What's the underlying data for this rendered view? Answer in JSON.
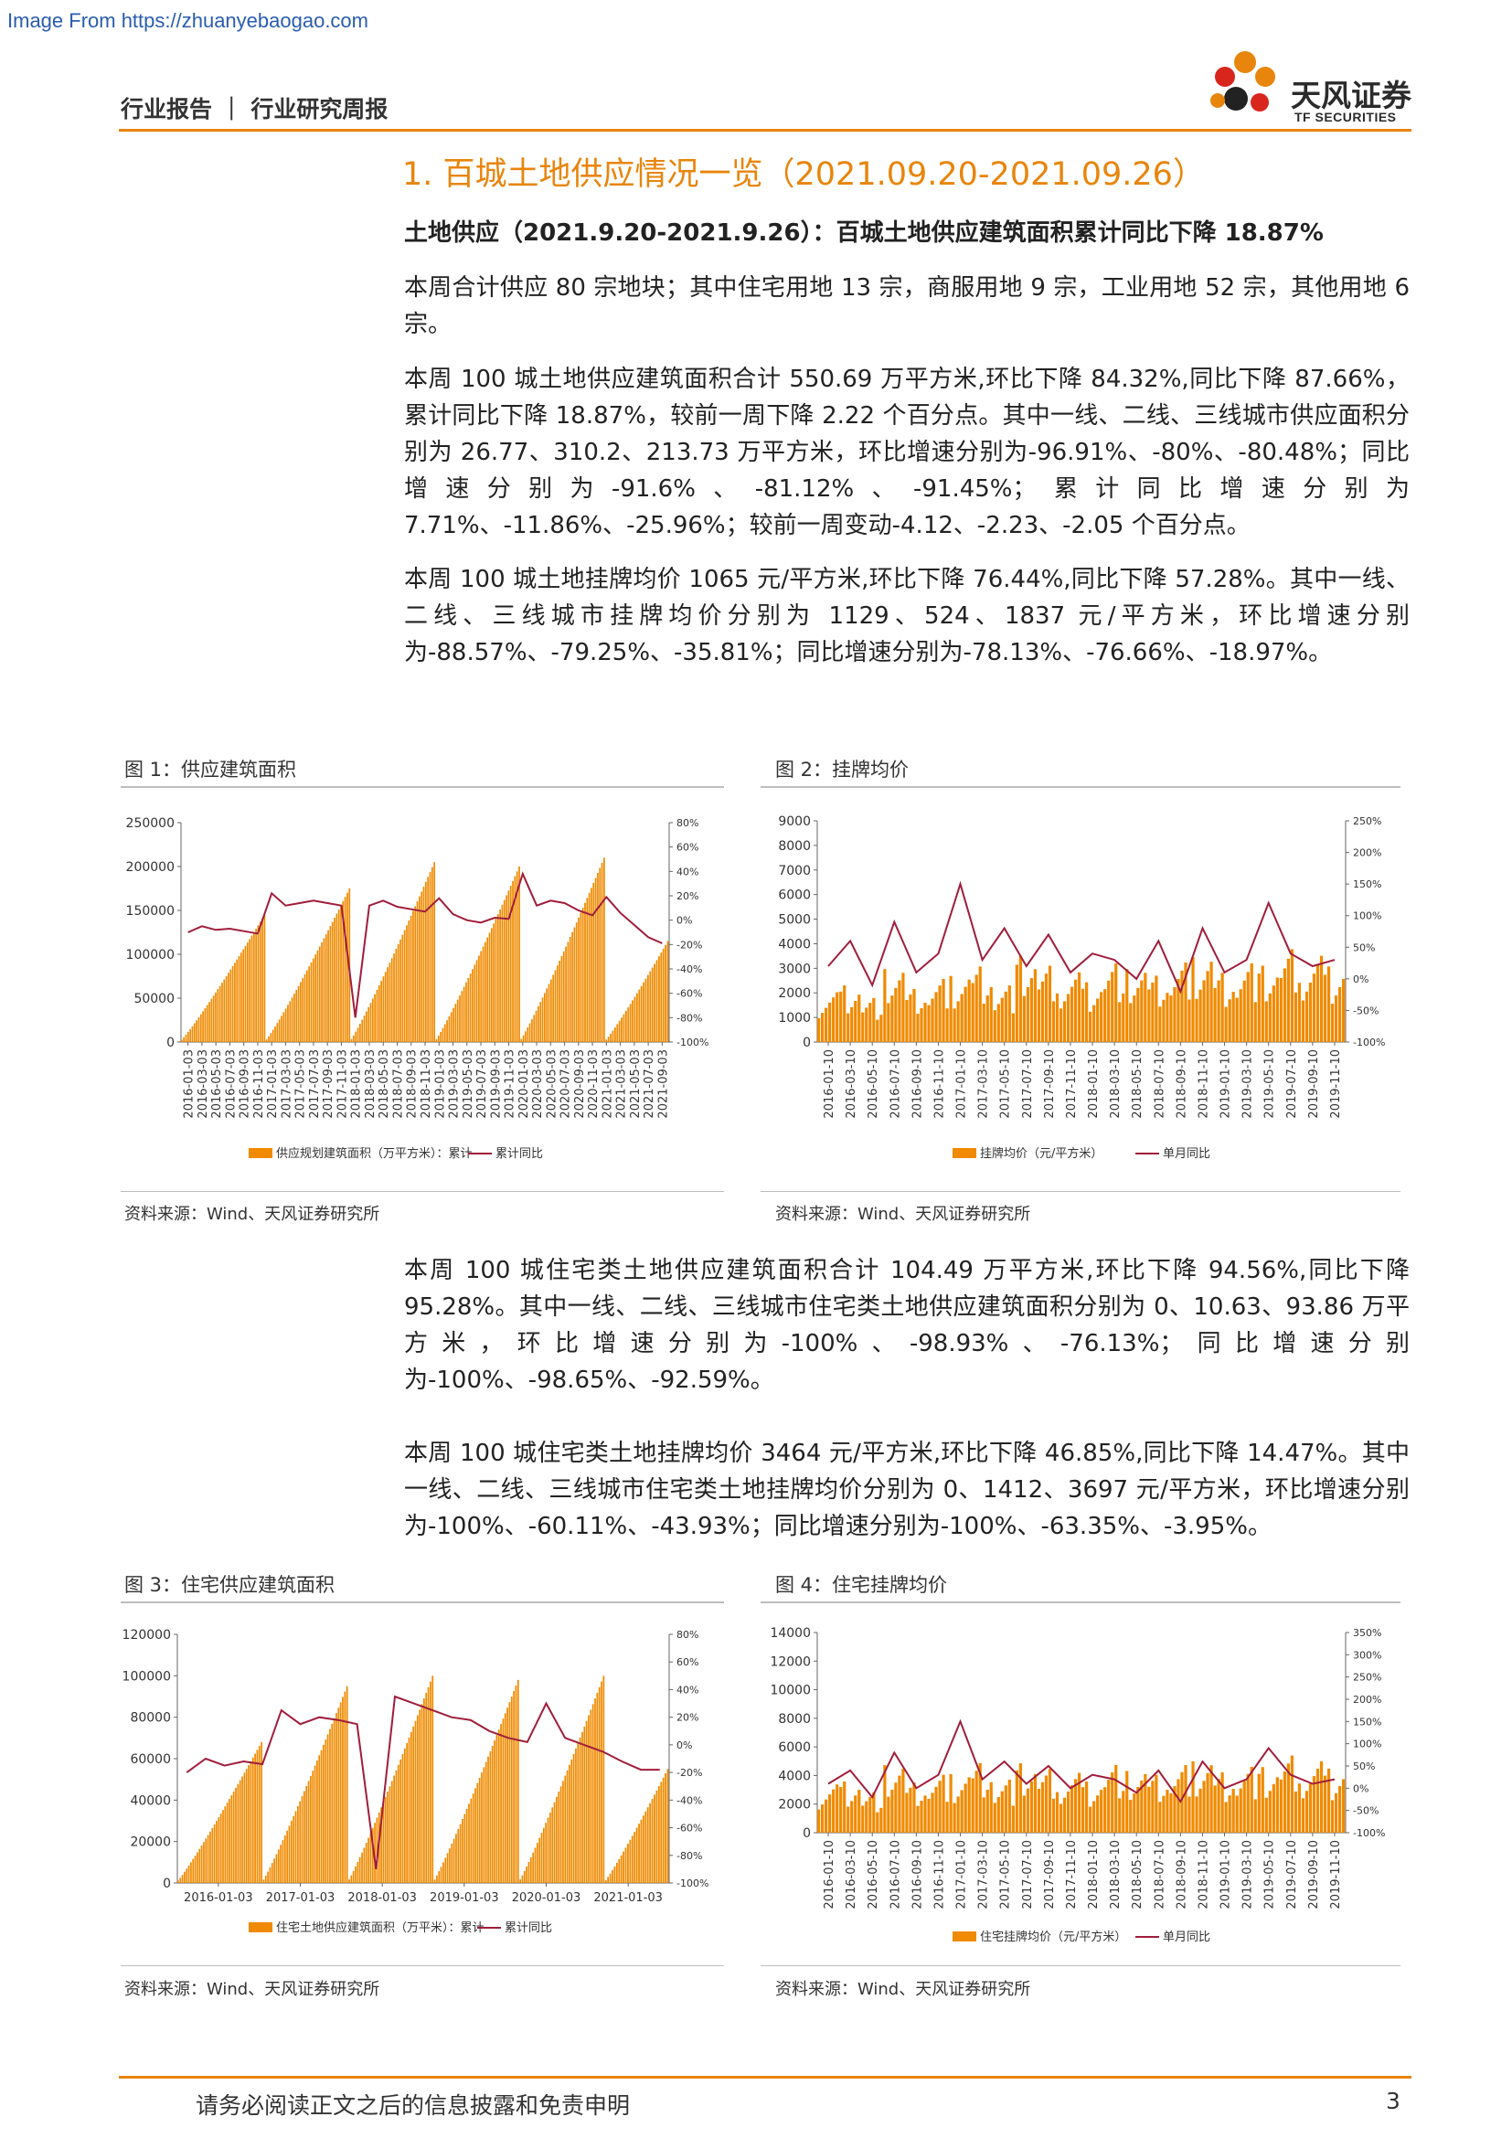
{
  "watermark": "Image From https://zhuanyebaogao.com",
  "header": {
    "category": "行业报告 ｜ 行业研究周报",
    "logo_cn": "天风证券",
    "logo_en": "TF SECURITIES"
  },
  "section_title": "1. 百城土地供应情况一览（2021.09.20-2021.09.26）",
  "paragraphs": [
    "土地供应（2021.9.20-2021.9.26）：百城土地供应建筑面积累计同比下降 18.87%",
    "本周合计供应 80 宗地块；其中住宅用地 13 宗，商服用地 9 宗，工业用地 52 宗，其他用地 6 宗。",
    "本周 100 城土地供应建筑面积合计 550.69 万平方米,环比下降 84.32%,同比下降 87.66%，累计同比下降 18.87%，较前一周下降 2.22 个百分点。其中一线、二线、三线城市供应面积分别为 26.77、310.2、213.73 万平方米，环比增速分别为-96.91%、-80%、-80.48%；同比增速分别为-91.6%、-81.12%、-91.45%；累计同比增速分别为 7.71%、-11.86%、-25.96%；较前一周变动-4.12、-2.23、-2.05 个百分点。",
    "本周 100 城土地挂牌均价 1065 元/平方米,环比下降 76.44%,同比下降 57.28%。其中一线、二线、三线城市挂牌均价分别为 1129、524、1837 元/平方米，环比增速分别为-88.57%、-79.25%、-35.81%；同比增速分别为-78.13%、-76.66%、-18.97%。",
    "本周 100 城住宅类土地供应建筑面积合计 104.49 万平方米,环比下降 94.56%,同比下降 95.28%。其中一线、二线、三线城市住宅类土地供应建筑面积分别为 0、10.63、93.86 万平方米，环比增速分别为-100%、-98.93%、-76.13%；同比增速分别为-100%、-98.65%、-92.59%。",
    "本周 100 城住宅类土地挂牌均价 3464 元/平方米,环比下降 46.85%,同比下降 14.47%。其中一线、二线、三线城市住宅类土地挂牌均价分别为 0、1412、3697 元/平方米，环比增速分别为-100%、-60.11%、-43.93%；同比增速分别为-100%、-63.35%、-3.95%。"
  ],
  "colors": {
    "accent": "#e8850c",
    "bar": "#f08a00",
    "line": "#a01d3c"
  },
  "figures": [
    {
      "title": "图 1：供应建筑面积",
      "source": "资料来源：Wind、天风证券研究所"
    },
    {
      "title": "图 2：挂牌均价",
      "source": "资料来源：Wind、天风证券研究所"
    },
    {
      "title": "图 3：住宅供应建筑面积",
      "source": "资料来源：Wind、天风证券研究所"
    },
    {
      "title": "图 4：住宅挂牌均价",
      "source": "资料来源：Wind、天风证券研究所"
    }
  ],
  "chart_data": [
    {
      "type": "bar",
      "y_left": {
        "ticks": [
          0,
          50000,
          100000,
          150000,
          200000,
          250000
        ],
        "range": [
          0,
          250000
        ]
      },
      "y_right": {
        "ticks": [
          "80%",
          "60%",
          "40%",
          "20%",
          "0%",
          "-20%",
          "-40%",
          "-60%",
          "-80%",
          "-100%"
        ],
        "range": [
          -100,
          80
        ]
      },
      "x_ticks": [
        "2016-01-03",
        "2016-03-03",
        "2016-05-03",
        "2016-07-03",
        "2016-09-03",
        "2016-11-03",
        "2017-01-03",
        "2017-03-03",
        "2017-05-03",
        "2017-07-03",
        "2017-09-03",
        "2017-11-03",
        "2018-01-03",
        "2018-03-03",
        "2018-05-03",
        "2018-07-03",
        "2018-09-03",
        "2018-11-03",
        "2019-01-03",
        "2019-03-03",
        "2019-05-03",
        "2019-07-03",
        "2019-09-03",
        "2019-11-03",
        "2020-01-03",
        "2020-03-03",
        "2020-05-03",
        "2020-07-03",
        "2020-09-03",
        "2020-11-03",
        "2021-01-03",
        "2021-03-03",
        "2021-05-03",
        "2021-07-03",
        "2021-09-03"
      ],
      "series": [
        {
          "name": "供应规划建筑面积（万平方米）：累计",
          "kind": "bar",
          "axis": "left",
          "year_peaks": [
            {
              "year": "2016",
              "peak": 145000
            },
            {
              "year": "2017",
              "peak": 175000
            },
            {
              "year": "2018",
              "peak": 205000
            },
            {
              "year": "2019",
              "peak": 200000
            },
            {
              "year": "2020",
              "peak": 210000
            },
            {
              "year": "2021",
              "peak": 115000
            }
          ]
        },
        {
          "name": "累计同比",
          "kind": "line",
          "axis": "right",
          "values_pct": [
            -10,
            -5,
            -8,
            -7,
            -9,
            -11,
            22,
            12,
            14,
            16,
            14,
            12,
            -80,
            12,
            16,
            11,
            9,
            7,
            18,
            5,
            0,
            -2,
            2,
            1,
            38,
            12,
            16,
            14,
            8,
            4,
            19,
            6,
            -4,
            -14,
            -19
          ]
        }
      ]
    },
    {
      "type": "bar",
      "y_left": {
        "ticks": [
          0,
          1000,
          2000,
          3000,
          4000,
          5000,
          6000,
          7000,
          8000,
          9000
        ],
        "range": [
          0,
          9000
        ]
      },
      "y_right": {
        "ticks": [
          "250%",
          "200%",
          "150%",
          "100%",
          "50%",
          "0%",
          "-50%",
          "-100%"
        ],
        "range": [
          -100,
          250
        ]
      },
      "x_ticks": [
        "2016-01-10",
        "2016-03-10",
        "2016-05-10",
        "2016-07-10",
        "2016-09-10",
        "2016-11-10",
        "2017-01-10",
        "2017-03-10",
        "2017-05-10",
        "2017-07-10",
        "2017-09-10",
        "2017-11-10",
        "2018-01-10",
        "2018-03-10",
        "2018-05-10",
        "2018-07-10",
        "2018-09-10",
        "2018-11-10",
        "2019-01-10",
        "2019-03-10",
        "2019-05-10",
        "2019-07-10",
        "2019-09-10",
        "2019-11-10"
      ],
      "series": [
        {
          "name": "挂牌均价（元/平方米）",
          "kind": "bar",
          "axis": "left",
          "values": [
            1500,
            1800,
            1400,
            2200,
            1600,
            1900,
            2100,
            2400,
            1800,
            2600,
            2300,
            2100,
            1900,
            2500,
            2200,
            2000,
            2400,
            2700,
            2200,
            2500,
            2300,
            2800,
            2600,
            2400
          ]
        },
        {
          "name": "单月同比",
          "kind": "line",
          "axis": "right",
          "values_pct": [
            20,
            60,
            -10,
            90,
            10,
            40,
            150,
            30,
            80,
            20,
            70,
            10,
            40,
            30,
            0,
            60,
            -20,
            80,
            10,
            30,
            120,
            40,
            20,
            30
          ]
        }
      ]
    },
    {
      "type": "bar",
      "y_left": {
        "ticks": [
          0,
          20000,
          40000,
          60000,
          80000,
          100000,
          120000
        ],
        "range": [
          0,
          120000
        ]
      },
      "y_right": {
        "ticks": [
          "80%",
          "60%",
          "40%",
          "20%",
          "0%",
          "-20%",
          "-40%",
          "-60%",
          "-80%",
          "-100%"
        ],
        "range": [
          -100,
          80
        ]
      },
      "x_ticks": [
        "2016-01-03",
        "2017-01-03",
        "2018-01-03",
        "2019-01-03",
        "2020-01-03",
        "2021-01-03"
      ],
      "series": [
        {
          "name": "住宅土地供应建筑面积（万平米）：累计",
          "kind": "bar",
          "axis": "left",
          "year_peaks": [
            {
              "year": "2016",
              "peak": 68000
            },
            {
              "year": "2017",
              "peak": 95000
            },
            {
              "year": "2018",
              "peak": 100000
            },
            {
              "year": "2019",
              "peak": 98000
            },
            {
              "year": "2020",
              "peak": 100000
            },
            {
              "year": "2021",
              "peak": 55000
            }
          ]
        },
        {
          "name": "累计同比",
          "kind": "line",
          "axis": "right",
          "values_pct": [
            -20,
            -10,
            -15,
            -12,
            -14,
            25,
            15,
            20,
            18,
            15,
            -90,
            35,
            30,
            25,
            20,
            18,
            10,
            5,
            2,
            30,
            5,
            0,
            -5,
            -12,
            -18,
            -18
          ]
        }
      ]
    },
    {
      "type": "bar",
      "y_left": {
        "ticks": [
          0,
          2000,
          4000,
          6000,
          8000,
          10000,
          12000,
          14000
        ],
        "range": [
          0,
          14000
        ]
      },
      "y_right": {
        "ticks": [
          "350%",
          "300%",
          "250%",
          "200%",
          "150%",
          "100%",
          "50%",
          "0%",
          "-50%",
          "-100%"
        ],
        "range": [
          -100,
          350
        ]
      },
      "x_ticks": [
        "2016-01-10",
        "2016-03-10",
        "2016-05-10",
        "2016-07-10",
        "2016-09-10",
        "2016-11-10",
        "2017-01-10",
        "2017-03-10",
        "2017-05-10",
        "2017-07-10",
        "2017-09-10",
        "2017-11-10",
        "2018-01-10",
        "2018-03-10",
        "2018-05-10",
        "2018-07-10",
        "2018-09-10",
        "2018-11-10",
        "2019-01-10",
        "2019-03-10",
        "2019-05-10",
        "2019-07-10",
        "2019-09-10",
        "2019-11-10"
      ],
      "series": [
        {
          "name": "住宅挂牌均价（元/平方米）",
          "kind": "bar",
          "axis": "left",
          "values": [
            2500,
            2800,
            2200,
            3500,
            2600,
            3000,
            3200,
            3800,
            2900,
            3600,
            3300,
            3100,
            2800,
            3700,
            3200,
            3000,
            3500,
            3900,
            3300,
            3600,
            3400,
            4000,
            3700,
            3500
          ]
        },
        {
          "name": "单月同比",
          "kind": "line",
          "axis": "right",
          "values_pct": [
            10,
            40,
            -20,
            80,
            0,
            30,
            150,
            20,
            60,
            10,
            50,
            0,
            30,
            20,
            -10,
            40,
            -30,
            60,
            0,
            20,
            90,
            30,
            10,
            20
          ]
        }
      ]
    }
  ]
}
